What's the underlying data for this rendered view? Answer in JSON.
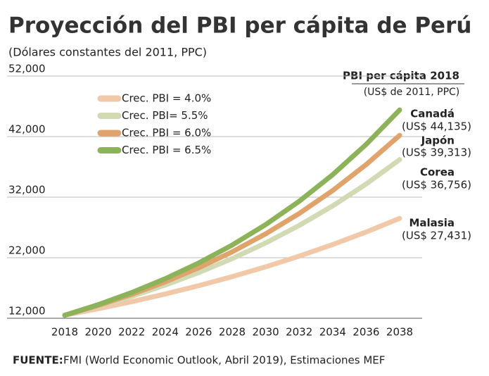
{
  "chart_data": {
    "type": "line",
    "title": "Proyección del PBI per cápita de Perú",
    "subtitle": "(Dólares constantes del 2011, PPC)",
    "source_label": "FUENTE:",
    "source": "FMI (World Economic Outlook, Abril 2019), Estimaciones MEF",
    "x": [
      2018,
      2020,
      2022,
      2024,
      2026,
      2028,
      2030,
      2032,
      2034,
      2036,
      2038
    ],
    "xlim": [
      2018,
      2038
    ],
    "xticks": [
      2018,
      2020,
      2022,
      2024,
      2026,
      2028,
      2030,
      2032,
      2034,
      2036,
      2038
    ],
    "ylim": [
      12000,
      52000
    ],
    "yticks": [
      {
        "value": 12000,
        "label": "12,000"
      },
      {
        "value": 22000,
        "label": "22,000"
      },
      {
        "value": 32000,
        "label": "32,000"
      },
      {
        "value": 42000,
        "label": "42,000"
      },
      {
        "value": 52000,
        "label": "52,000"
      }
    ],
    "grid": true,
    "series": [
      {
        "name": "Crec. PBI = 4.0%",
        "color": "#f1c9a9",
        "values": [
          12500,
          13574,
          14740,
          16006,
          17381,
          18874,
          20495,
          22256,
          24168,
          26244,
          28500
        ]
      },
      {
        "name": "Crec. PBI= 5.5%",
        "color": "#d1dab3",
        "values": [
          12500,
          13978,
          15630,
          17478,
          19544,
          21854,
          24437,
          27326,
          30556,
          34168,
          38200
        ]
      },
      {
        "name": "Crec. PBI = 6.0%",
        "color": "#e0a36b",
        "values": [
          12500,
          14118,
          15945,
          18008,
          20338,
          22970,
          25943,
          29300,
          33091,
          37373,
          42200
        ]
      },
      {
        "name": "Crec. PBI = 6.5%",
        "color": "#8db35a",
        "values": [
          12500,
          14252,
          16250,
          18528,
          21126,
          24088,
          27465,
          31315,
          35705,
          40711,
          46400
        ]
      }
    ],
    "annotation_title": "PBI per cápita 2018",
    "annotation_subtitle": "(US$ de 2011, PPC)",
    "annotations": [
      {
        "country": "Canadá",
        "value": "(US$ 44,135)"
      },
      {
        "country": "Japón",
        "value": "(US$ 39,313)"
      },
      {
        "country": "Corea",
        "value": "(US$ 36,756)"
      },
      {
        "country": "Malasia",
        "value": "(US$ 27,431)"
      }
    ]
  }
}
